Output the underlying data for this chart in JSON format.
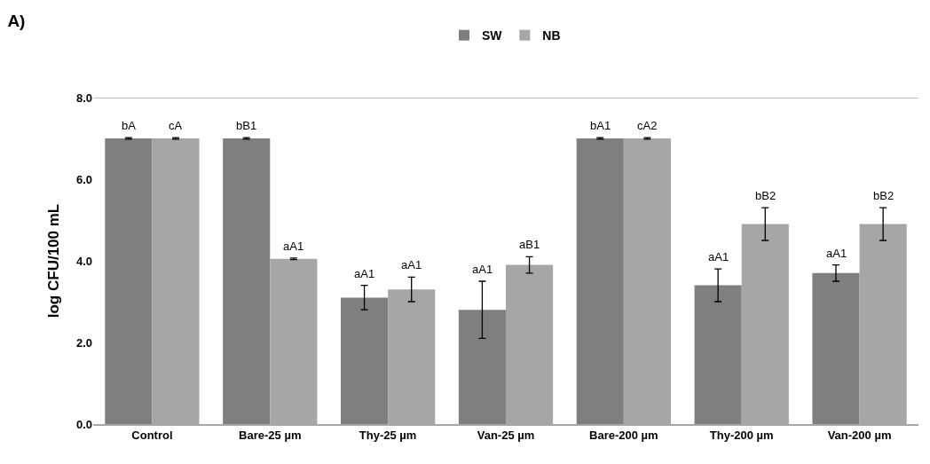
{
  "chart_data": {
    "type": "bar",
    "title": "A)",
    "ylabel": "log CFU/100 mL",
    "categories": [
      "Control",
      "Bare-25 µm",
      "Thy-25 µm",
      "Van-25 µm",
      "Bare-200 µm",
      "Thy-200 µm",
      "Van-200 µm"
    ],
    "series": [
      {
        "name": "SW",
        "color": "#7f7f7f",
        "values": [
          7.0,
          7.0,
          3.1,
          2.8,
          7.0,
          3.4,
          3.7
        ],
        "errors": [
          0.02,
          0.02,
          0.3,
          0.7,
          0.02,
          0.4,
          0.2
        ],
        "value_labels": [
          "bA",
          "bB1",
          "aA1",
          "aA1",
          "bA1",
          "aA1",
          "aA1"
        ]
      },
      {
        "name": "NB",
        "color": "#a6a6a6",
        "values": [
          7.0,
          4.05,
          3.3,
          3.9,
          7.0,
          4.9,
          4.9
        ],
        "errors": [
          0.02,
          0.02,
          0.3,
          0.2,
          0.02,
          0.4,
          0.4
        ],
        "value_labels": [
          "cA",
          "aA1",
          "aA1",
          "aB1",
          "cA2",
          "bB2",
          "bB2"
        ]
      }
    ],
    "ylim": [
      0,
      8
    ],
    "yticks": [
      {
        "value": 0,
        "label": "0.0"
      },
      {
        "value": 2,
        "label": "2.0"
      },
      {
        "value": 4,
        "label": "4.0"
      },
      {
        "value": 6,
        "label": "6.0"
      },
      {
        "value": 8,
        "label": "8.0"
      }
    ],
    "grid": false,
    "legend": "top"
  }
}
